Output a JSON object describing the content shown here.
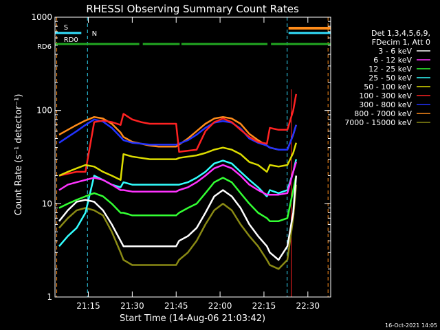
{
  "chart_data": {
    "type": "line",
    "title": "RHESSI Observing Summary Count Rates",
    "xlabel": "Start Time (14-Aug-06 21:03:42)",
    "ylabel": "Count Rate (s⁻¹ detector⁻¹)",
    "yscale": "log",
    "ylim": [
      1,
      1000
    ],
    "xlim_minutes": [
      21.06,
      22.63
    ],
    "x_ticks": [
      "21:15",
      "21:30",
      "21:45",
      "22:00",
      "22:15",
      "22:30"
    ],
    "y_ticks": [
      "1",
      "10",
      "100",
      "1000"
    ],
    "legend_header": [
      "Det 1,3,4,5,6,9,",
      "FDecim 1, Att 0"
    ],
    "legend_position": "right",
    "footer_timestamp": "16-Oct-2021 14:05",
    "flags": [
      {
        "label": "S",
        "color": "#ff8c1a"
      },
      {
        "label": "N",
        "color": "#33e0ff"
      },
      {
        "label": "RD0",
        "color": "#22a822"
      },
      {
        "label": "RD6",
        "color": "#22a822"
      }
    ],
    "x": [
      "21:05",
      "21:08",
      "21:11",
      "21:14",
      "21:17",
      "21:20",
      "21:23",
      "21:26",
      "21:27",
      "21:30",
      "21:33",
      "21:36",
      "21:39",
      "21:42",
      "21:45",
      "21:46",
      "21:49",
      "21:52",
      "21:55",
      "21:58",
      "22:01",
      "22:04",
      "22:07",
      "22:10",
      "22:13",
      "22:16",
      "22:17",
      "22:20",
      "22:23",
      "22:25",
      "22:26"
    ],
    "series": [
      {
        "name": "3 - 6 keV",
        "color": "#ffffff",
        "values": [
          6.5,
          8.5,
          10.5,
          11,
          10.5,
          8.5,
          6,
          4,
          3.5,
          3.5,
          3.5,
          3.5,
          3.5,
          3.5,
          3.5,
          4,
          4.5,
          5.5,
          8,
          12,
          14,
          12,
          9,
          6,
          4.5,
          3.5,
          3,
          2.5,
          3.5,
          8,
          20
        ]
      },
      {
        "name": "6 - 12 keV",
        "color": "#ff33ff",
        "values": [
          14,
          16,
          17,
          18,
          19,
          18,
          16,
          14,
          14,
          13.5,
          13.5,
          13.5,
          13.5,
          13.5,
          13.5,
          14,
          15,
          17,
          20,
          24,
          26,
          24,
          20,
          16,
          14,
          12.5,
          12.5,
          12.5,
          13,
          22,
          28
        ]
      },
      {
        "name": "12 - 25 keV",
        "color": "#33ff33",
        "values": [
          9,
          10,
          11,
          12,
          13,
          12,
          10,
          8,
          8,
          7.5,
          7.5,
          7.5,
          7.5,
          7.5,
          7.5,
          8,
          9,
          10,
          13,
          17,
          19,
          17,
          13,
          10,
          8,
          7,
          6.5,
          6.5,
          7,
          14,
          20
        ]
      },
      {
        "name": "25 - 50 keV",
        "color": "#33ffff",
        "values": [
          3.5,
          4.5,
          5.5,
          8,
          20,
          18,
          16,
          15,
          17,
          16,
          16,
          16,
          16,
          16,
          16,
          16,
          17,
          19,
          22,
          27,
          29,
          27,
          22,
          18,
          15,
          12,
          14,
          13,
          14,
          22,
          30
        ]
      },
      {
        "name": "50 - 100 keV",
        "color": "#dddd00",
        "values": [
          20,
          22,
          24,
          26,
          25,
          22,
          20,
          18,
          34,
          32,
          31,
          30,
          30,
          30,
          30,
          31,
          32,
          33,
          35,
          38,
          40,
          38,
          34,
          28,
          26,
          22,
          26,
          25,
          26,
          35,
          45
        ]
      },
      {
        "name": "100 - 300 keV",
        "color": "#ff2222",
        "values": [
          20,
          21,
          22,
          22,
          75,
          78,
          75,
          70,
          92,
          80,
          75,
          72,
          72,
          72,
          72,
          36,
          37,
          38,
          60,
          75,
          82,
          75,
          62,
          52,
          46,
          44,
          65,
          62,
          62,
          100,
          150
        ]
      },
      {
        "name": "300 - 800 keV",
        "color": "#2233ff",
        "values": [
          45,
          52,
          60,
          70,
          80,
          76,
          65,
          52,
          48,
          45,
          44,
          43,
          43,
          43,
          43,
          44,
          48,
          55,
          65,
          74,
          77,
          74,
          64,
          50,
          45,
          42,
          40,
          38,
          38,
          55,
          70
        ]
      },
      {
        "name": "800 - 7000 keV",
        "color": "#ff8c1a",
        "values": [
          55,
          62,
          70,
          78,
          85,
          82,
          72,
          58,
          52,
          46,
          44,
          42,
          41,
          41,
          41,
          43,
          50,
          60,
          72,
          82,
          85,
          82,
          72,
          56,
          48,
          42,
          40,
          38,
          38,
          55,
          70
        ]
      },
      {
        "name": "7000 - 15000 keV",
        "color": "#8a8a14",
        "values": [
          5.5,
          7,
          8.5,
          9,
          8.5,
          7.5,
          5,
          3,
          2.5,
          2.2,
          2.2,
          2.2,
          2.2,
          2.2,
          2.2,
          2.5,
          3,
          4,
          6,
          8.5,
          10,
          8.5,
          6,
          4.5,
          3.5,
          2.5,
          2.2,
          2,
          2.5,
          7,
          16
        ]
      }
    ]
  }
}
